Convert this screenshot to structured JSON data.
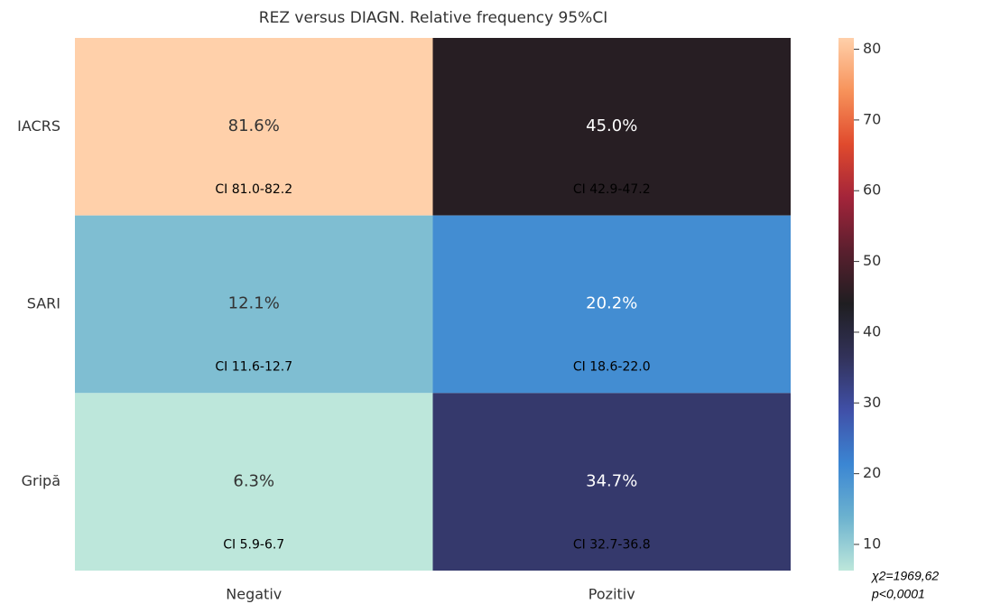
{
  "chart_data": {
    "type": "heatmap",
    "title": "REZ versus DIAGN. Relative frequency 95%CI",
    "rows": [
      "IACRS",
      "SARI",
      "Gripă"
    ],
    "columns": [
      "Negativ",
      "Pozitiv"
    ],
    "values": [
      [
        81.6,
        45.0
      ],
      [
        12.1,
        20.2
      ],
      [
        6.3,
        34.7
      ]
    ],
    "value_labels": [
      [
        "81.6%",
        "45.0%"
      ],
      [
        "12.1%",
        "20.2%"
      ],
      [
        "6.3%",
        "34.7%"
      ]
    ],
    "annotations": [
      [
        "CI 81.0-82.2",
        "CI 42.9-47.2"
      ],
      [
        "CI 11.6-12.7",
        "CI 18.6-22.0"
      ],
      [
        "CI 5.9-6.7",
        "CI 32.7-36.8"
      ]
    ],
    "colormap": [
      "#bde7db",
      "#6cb2cf",
      "#3b86d3",
      "#4050a8",
      "#32325a",
      "#1f1e21",
      "#5a1f2e",
      "#a3243a",
      "#e04a2d",
      "#f7925a",
      "#ffd0aa"
    ],
    "vlim": [
      6.3,
      81.6
    ],
    "colorbar_ticks": [
      10,
      20,
      30,
      40,
      50,
      60,
      70,
      80
    ],
    "stat_labels": [
      "χ2=1969,62",
      "p<0,0001"
    ]
  }
}
